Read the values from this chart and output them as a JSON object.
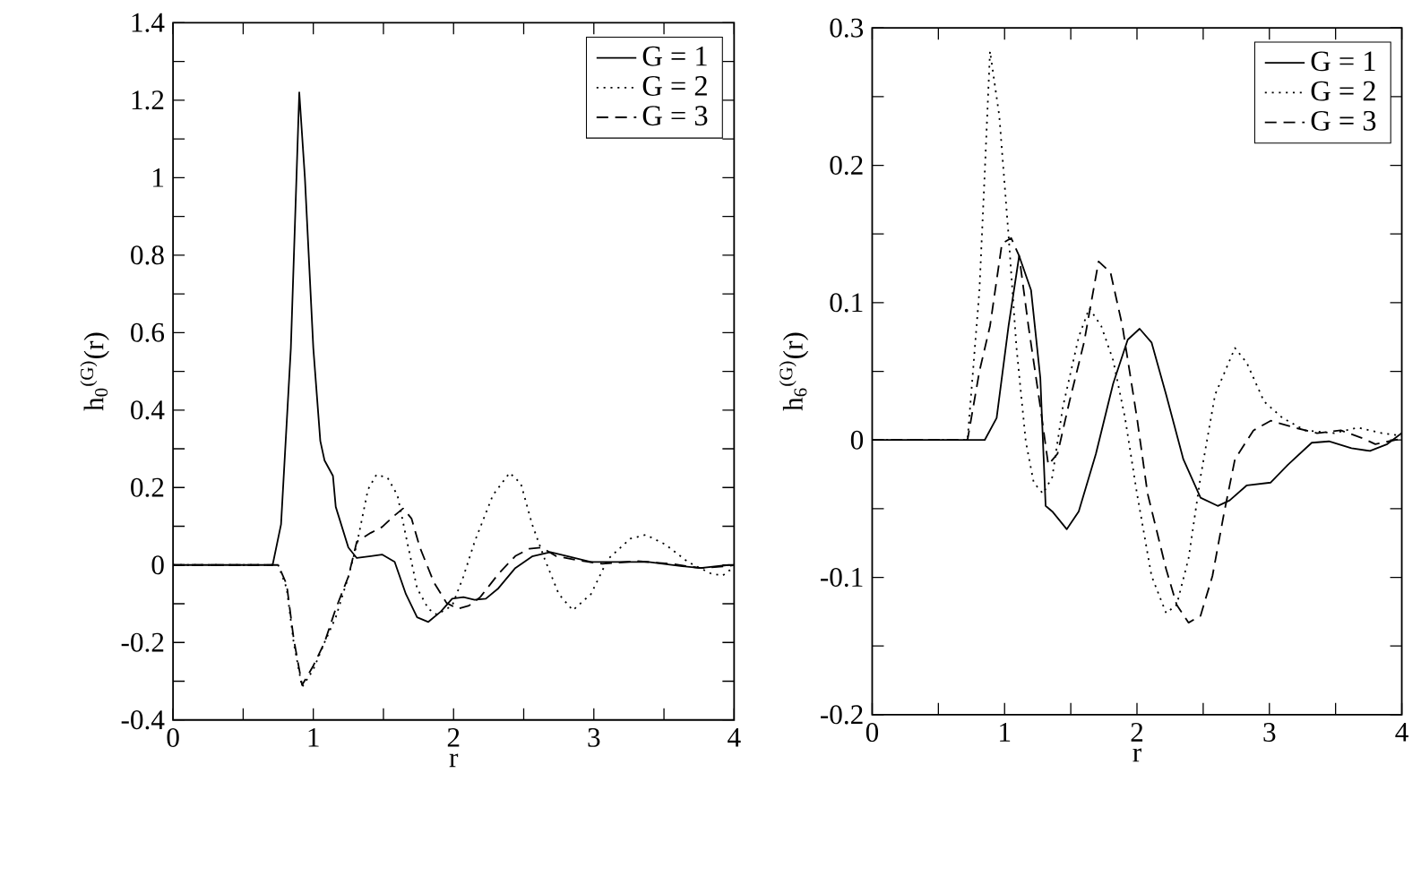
{
  "chart_data": [
    {
      "type": "line",
      "xlabel": "r",
      "ylabel": "h$_{0}$$^{(G)}$(r)",
      "xlim": [
        0,
        4
      ],
      "ylim": [
        -0.4,
        1.4
      ],
      "xticks": [
        0,
        {
          "value": 0.5,
          "label": null
        },
        1,
        {
          "value": 1.5,
          "label": null
        },
        2,
        {
          "value": 2.5,
          "label": null
        },
        3,
        {
          "value": 3.5,
          "label": null
        },
        4
      ],
      "yticks": [
        -0.4,
        {
          "value": -0.3,
          "label": null
        },
        -0.2,
        {
          "value": -0.1,
          "label": null
        },
        0,
        {
          "value": 0.1,
          "label": null
        },
        0.2,
        {
          "value": 0.3,
          "label": null
        },
        0.4,
        {
          "value": 0.5,
          "label": null
        },
        0.6,
        {
          "value": 0.7,
          "label": null
        },
        0.8,
        {
          "value": 0.9,
          "label": null
        },
        1,
        {
          "value": 1.1,
          "label": null
        },
        1.2,
        {
          "value": 1.3,
          "label": null
        },
        1.4
      ],
      "legend": "top right",
      "series": [
        {
          "name": "G = 1",
          "color": "#000000",
          "line_style": "solid",
          "x": [
            0,
            0.71,
            0.77,
            0.84,
            0.9,
            0.94,
            1.0,
            1.05,
            1.08,
            1.14,
            1.16,
            1.25,
            1.31,
            1.41,
            1.49,
            1.58,
            1.66,
            1.74,
            1.82,
            1.91,
            1.99,
            2.07,
            2.15,
            2.23,
            2.32,
            2.44,
            2.56,
            2.69,
            2.81,
            2.98,
            3.14,
            3.39,
            3.63,
            3.76,
            3.96,
            4.0
          ],
          "values": [
            0,
            0,
            0.105,
            0.56,
            1.22,
            1.0,
            0.56,
            0.32,
            0.27,
            0.23,
            0.15,
            0.045,
            0.018,
            0.023,
            0.027,
            0.008,
            -0.075,
            -0.135,
            -0.147,
            -0.12,
            -0.087,
            -0.083,
            -0.09,
            -0.087,
            -0.06,
            -0.008,
            0.022,
            0.033,
            0.023,
            0.008,
            0.008,
            0.008,
            -0.003,
            -0.008,
            0,
            0
          ]
        },
        {
          "name": "G = 2",
          "color": "#000000",
          "line_style": "dotted",
          "x": [
            0,
            0.75,
            0.81,
            0.86,
            0.92,
            1.0,
            1.08,
            1.16,
            1.25,
            1.31,
            1.39,
            1.45,
            1.53,
            1.6,
            1.66,
            1.74,
            1.82,
            1.88,
            1.99,
            2.07,
            2.15,
            2.28,
            2.4,
            2.48,
            2.56,
            2.65,
            2.75,
            2.85,
            2.98,
            3.1,
            3.26,
            3.37,
            3.51,
            3.67,
            3.84,
            3.92,
            3.96,
            4.0
          ],
          "values": [
            0,
            0,
            -0.06,
            -0.2,
            -0.315,
            -0.27,
            -0.2,
            -0.135,
            -0.03,
            0.053,
            0.195,
            0.233,
            0.225,
            0.18,
            0.075,
            -0.06,
            -0.113,
            -0.128,
            -0.105,
            -0.03,
            0.06,
            0.18,
            0.238,
            0.21,
            0.105,
            0.015,
            -0.075,
            -0.117,
            -0.075,
            0.015,
            0.068,
            0.078,
            0.053,
            0.008,
            -0.023,
            -0.027,
            -0.015,
            -0.01
          ]
        },
        {
          "name": "G = 3",
          "color": "#000000",
          "line_style": "dashed",
          "x": [
            0,
            0.75,
            0.81,
            0.86,
            0.92,
            1.0,
            1.08,
            1.16,
            1.25,
            1.31,
            1.41,
            1.49,
            1.58,
            1.64,
            1.7,
            1.76,
            1.86,
            1.95,
            2.03,
            2.11,
            2.19,
            2.32,
            2.44,
            2.54,
            2.63,
            2.73,
            2.89,
            3.06,
            3.31,
            3.55,
            3.76,
            3.96,
            4.0
          ],
          "values": [
            0,
            0,
            -0.05,
            -0.19,
            -0.31,
            -0.26,
            -0.2,
            -0.113,
            -0.03,
            0.06,
            0.083,
            0.098,
            0.128,
            0.146,
            0.12,
            0.045,
            -0.045,
            -0.098,
            -0.113,
            -0.105,
            -0.083,
            -0.023,
            0.023,
            0.042,
            0.045,
            0.023,
            0.012,
            0.003,
            0.01,
            0.003,
            -0.008,
            -0.003,
            0
          ]
        }
      ]
    },
    {
      "type": "line",
      "xlabel": "r",
      "ylabel": "h$_{6}$$^{(G)}$(r)",
      "xlim": [
        0,
        4
      ],
      "ylim": [
        -0.2,
        0.3
      ],
      "xticks": [
        0,
        {
          "value": 0.5,
          "label": null
        },
        1,
        {
          "value": 1.5,
          "label": null
        },
        2,
        {
          "value": 2.5,
          "label": null
        },
        3,
        {
          "value": 3.5,
          "label": null
        },
        4
      ],
      "yticks": [
        -0.2,
        {
          "value": -0.15,
          "label": null
        },
        -0.1,
        {
          "value": -0.05,
          "label": null
        },
        0,
        {
          "value": 0.05,
          "label": null
        },
        0.1,
        {
          "value": 0.15,
          "label": null
        },
        0.2,
        {
          "value": 0.25,
          "label": null
        },
        0.3
      ],
      "legend": "top right",
      "series": [
        {
          "name": "G = 1",
          "color": "#000000",
          "line_style": "solid",
          "x": [
            0,
            0.85,
            0.94,
            1.03,
            1.11,
            1.2,
            1.27,
            1.31,
            1.36,
            1.47,
            1.56,
            1.69,
            1.82,
            1.93,
            2.02,
            2.11,
            2.22,
            2.35,
            2.48,
            2.61,
            2.7,
            2.83,
            3.01,
            3.14,
            3.32,
            3.45,
            3.62,
            3.76,
            3.89,
            4.0
          ],
          "values": [
            0,
            0,
            0.016,
            0.083,
            0.134,
            0.109,
            0.045,
            -0.048,
            -0.052,
            -0.065,
            -0.052,
            -0.01,
            0.041,
            0.073,
            0.081,
            0.071,
            0.033,
            -0.014,
            -0.042,
            -0.048,
            -0.044,
            -0.033,
            -0.031,
            -0.018,
            -0.002,
            -0.001,
            -0.006,
            -0.008,
            -0.003,
            0.005
          ]
        },
        {
          "name": "G = 2",
          "color": "#000000",
          "line_style": "dotted",
          "x": [
            0,
            0.72,
            0.81,
            0.85,
            0.89,
            0.96,
            1.03,
            1.09,
            1.16,
            1.22,
            1.29,
            1.36,
            1.44,
            1.56,
            1.64,
            1.73,
            1.82,
            1.91,
            2.0,
            2.11,
            2.22,
            2.3,
            2.39,
            2.48,
            2.59,
            2.74,
            2.83,
            2.96,
            3.1,
            3.27,
            3.49,
            3.67,
            3.85,
            4.0
          ],
          "values": [
            0,
            0,
            0.109,
            0.194,
            0.283,
            0.236,
            0.149,
            0.067,
            -0.001,
            -0.031,
            -0.039,
            -0.027,
            0.024,
            0.075,
            0.096,
            0.083,
            0.058,
            0.016,
            -0.039,
            -0.099,
            -0.126,
            -0.12,
            -0.086,
            -0.027,
            0.033,
            0.067,
            0.056,
            0.028,
            0.016,
            0.007,
            0.005,
            0.009,
            0.005,
            0.003
          ]
        },
        {
          "name": "G = 3",
          "color": "#000000",
          "line_style": "dashed",
          "x": [
            0,
            0.72,
            0.81,
            0.89,
            0.98,
            1.05,
            1.11,
            1.18,
            1.27,
            1.33,
            1.4,
            1.49,
            1.6,
            1.71,
            1.8,
            1.89,
            2.0,
            2.08,
            2.22,
            2.3,
            2.39,
            2.48,
            2.57,
            2.66,
            2.74,
            2.88,
            3.01,
            3.19,
            3.36,
            3.54,
            3.71,
            3.8,
            4.0
          ],
          "values": [
            0,
            0,
            0.05,
            0.083,
            0.143,
            0.147,
            0.134,
            0.083,
            0.024,
            -0.018,
            -0.01,
            0.028,
            0.071,
            0.13,
            0.122,
            0.083,
            0.016,
            -0.039,
            -0.094,
            -0.12,
            -0.133,
            -0.128,
            -0.099,
            -0.052,
            -0.014,
            0.007,
            0.014,
            0.009,
            0.005,
            0.007,
            0.001,
            -0.003,
            0.001
          ]
        }
      ]
    }
  ]
}
